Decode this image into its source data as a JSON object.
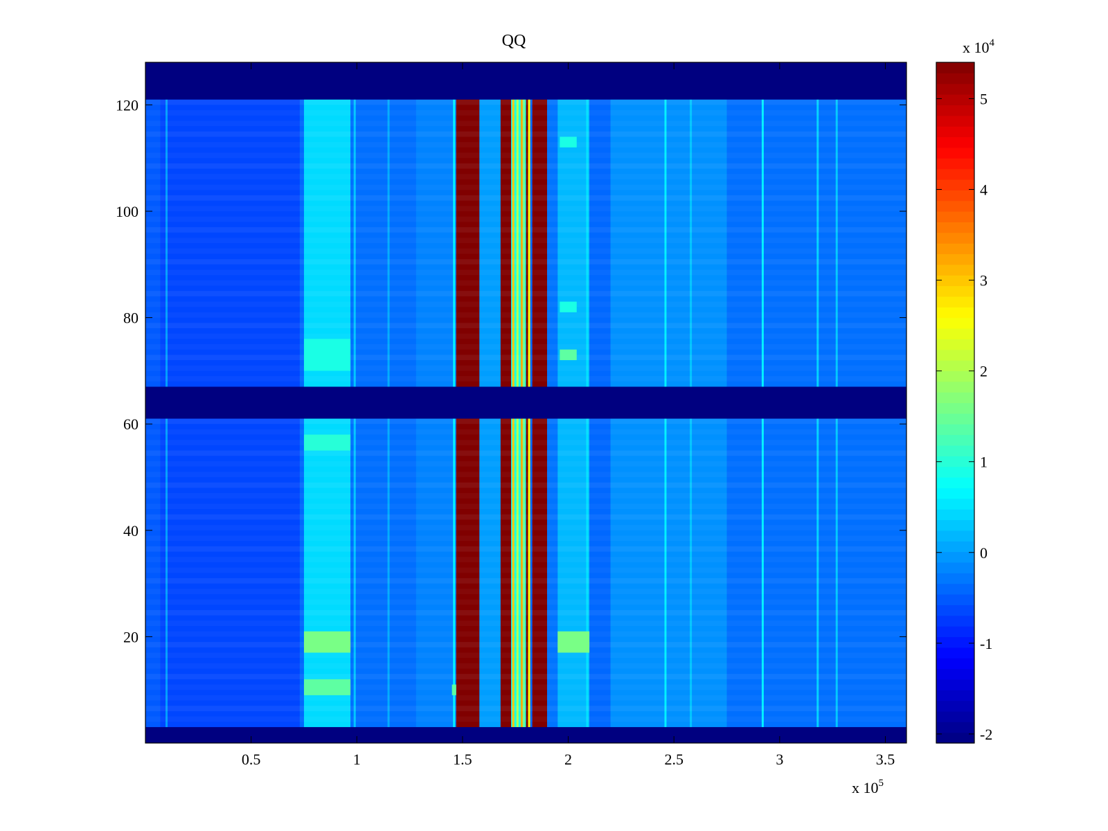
{
  "chart_data": {
    "type": "heatmap",
    "title": "QQ",
    "xlabel": "",
    "ylabel": "",
    "x_exponent_label": {
      "base": "x 10",
      "exp": "5"
    },
    "xlim": [
      0,
      3.6
    ],
    "ylim": [
      0,
      128
    ],
    "x_ticks": [
      0.5,
      1,
      1.5,
      2,
      2.5,
      3,
      3.5
    ],
    "x_tick_labels": [
      "0.5",
      "1",
      "1.5",
      "2",
      "2.5",
      "3",
      "3.5"
    ],
    "y_ticks": [
      20,
      40,
      60,
      80,
      100,
      120
    ],
    "y_tick_labels": [
      "20",
      "40",
      "60",
      "80",
      "100",
      "120"
    ],
    "colorbar": {
      "colormap": "jet",
      "exponent_label": {
        "base": "x 10",
        "exp": "4"
      },
      "clim": [
        -2.1,
        5.4
      ],
      "ticks": [
        -2,
        -1,
        0,
        1,
        2,
        3,
        4,
        5
      ],
      "tick_labels": [
        "-2",
        "-1",
        "0",
        "1",
        "2",
        "3",
        "4",
        "5"
      ]
    },
    "background_level": -0.4,
    "row_bands": [
      {
        "y_from": 0,
        "y_to": 3,
        "value": -2.1
      },
      {
        "y_from": 61,
        "y_to": 67,
        "value": -2.1
      },
      {
        "y_from": 121,
        "y_to": 128,
        "value": -2.1
      }
    ],
    "column_bands": [
      {
        "x_from": 0.0,
        "x_to": 0.07,
        "value": -0.5
      },
      {
        "x_from": 0.07,
        "x_to": 0.73,
        "value": -0.65
      },
      {
        "x_from": 0.75,
        "x_to": 0.97,
        "value": 0.45
      },
      {
        "x_from": 0.97,
        "x_to": 1.28,
        "value": -0.35
      },
      {
        "x_from": 1.28,
        "x_to": 1.47,
        "value": -0.2
      },
      {
        "x_from": 1.47,
        "x_to": 1.58,
        "value": 5.4
      },
      {
        "x_from": 1.58,
        "x_to": 1.68,
        "value": 0.0
      },
      {
        "x_from": 1.68,
        "x_to": 1.73,
        "value": 5.4
      },
      {
        "x_from": 1.73,
        "x_to": 1.8,
        "value": 0.9
      },
      {
        "x_from": 1.8,
        "x_to": 1.82,
        "value": 5.4
      },
      {
        "x_from": 1.83,
        "x_to": 1.9,
        "value": 5.4
      },
      {
        "x_from": 1.9,
        "x_to": 1.95,
        "value": -0.3
      },
      {
        "x_from": 1.95,
        "x_to": 2.1,
        "value": 0.2
      },
      {
        "x_from": 2.2,
        "x_to": 2.75,
        "value": -0.1
      },
      {
        "x_from": 2.75,
        "x_to": 3.6,
        "value": -0.35
      }
    ],
    "thin_lines": [
      {
        "x": 0.1,
        "value": 0.0
      },
      {
        "x": 0.99,
        "value": 0.3
      },
      {
        "x": 1.15,
        "value": 0.1
      },
      {
        "x": 1.46,
        "value": 0.6
      },
      {
        "x": 1.74,
        "value": 3.0
      },
      {
        "x": 1.76,
        "value": 2.0
      },
      {
        "x": 1.78,
        "value": 3.2
      },
      {
        "x": 1.79,
        "value": 1.5
      },
      {
        "x": 1.815,
        "value": 2.6
      },
      {
        "x": 2.09,
        "value": 0.5
      },
      {
        "x": 2.46,
        "value": 0.6
      },
      {
        "x": 2.58,
        "value": 0.3
      },
      {
        "x": 2.92,
        "value": 0.6
      },
      {
        "x": 3.18,
        "value": 0.4
      },
      {
        "x": 3.27,
        "value": 0.3
      }
    ],
    "hot_spots": [
      {
        "x_from": 0.75,
        "x_to": 0.97,
        "y_from": 17,
        "y_to": 21,
        "value": 1.6
      },
      {
        "x_from": 0.75,
        "x_to": 0.97,
        "y_from": 9,
        "y_to": 12,
        "value": 1.4
      },
      {
        "x_from": 0.75,
        "x_to": 0.97,
        "y_from": 55,
        "y_to": 58,
        "value": 1.0
      },
      {
        "x_from": 0.75,
        "x_to": 0.97,
        "y_from": 70,
        "y_to": 76,
        "value": 0.9
      },
      {
        "x_from": 1.95,
        "x_to": 2.1,
        "y_from": 17,
        "y_to": 21,
        "value": 1.6
      },
      {
        "x_from": 1.96,
        "x_to": 2.04,
        "y_from": 72,
        "y_to": 74,
        "value": 1.4
      },
      {
        "x_from": 1.96,
        "x_to": 2.04,
        "y_from": 81,
        "y_to": 83,
        "value": 0.9
      },
      {
        "x_from": 1.96,
        "x_to": 2.04,
        "y_from": 112,
        "y_to": 114,
        "value": 0.9
      },
      {
        "x_from": 1.45,
        "x_to": 1.47,
        "y_from": 9,
        "y_to": 11,
        "value": 1.4
      }
    ]
  }
}
